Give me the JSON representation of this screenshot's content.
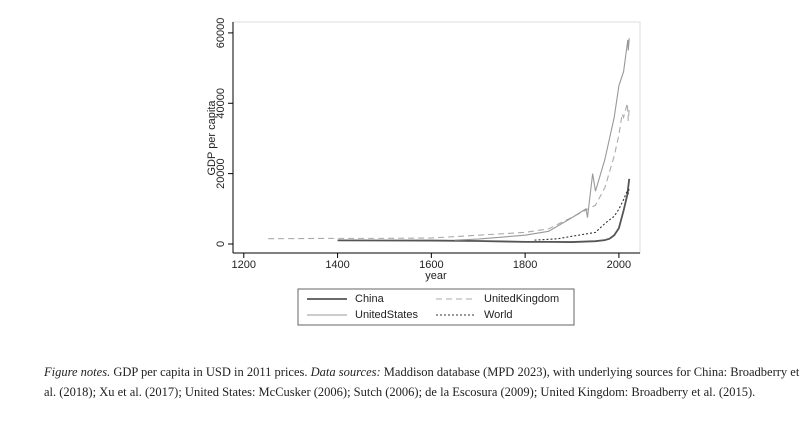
{
  "chart_data": {
    "type": "line",
    "x_label": "year",
    "y_label": "GDP per capita",
    "xlim": [
      1177,
      2045
    ],
    "ylim": [
      -2560,
      63100
    ],
    "xticks": [
      1200,
      1400,
      1600,
      1800,
      2000
    ],
    "yticks": [
      0,
      20000,
      40000,
      60000
    ],
    "series": [
      {
        "name": "China",
        "color": "#555555",
        "dash": "solid",
        "x": [
          1400,
          1500,
          1600,
          1700,
          1750,
          1800,
          1850,
          1900,
          1950,
          1970,
          1980,
          1990,
          2000,
          2010,
          2018,
          2022
        ],
        "values": [
          1032,
          990,
          977,
          841,
          727,
          600,
          600,
          545,
          799,
          1100,
          1500,
          2500,
          4500,
          9500,
          14000,
          18500
        ]
      },
      {
        "name": "UnitedKingdom",
        "color": "#aaaaaa",
        "dash": "dashed",
        "x": [
          1252,
          1400,
          1500,
          1600,
          1700,
          1800,
          1850,
          1900,
          1950,
          1970,
          1990,
          2000,
          2007,
          2010,
          2018,
          2020,
          2022
        ],
        "values": [
          1500,
          1600,
          1600,
          1700,
          2500,
          3300,
          4300,
          7600,
          11000,
          16000,
          25000,
          31000,
          37000,
          36000,
          40000,
          35000,
          38500
        ]
      },
      {
        "name": "UnitedStates",
        "color": "#999999",
        "dash": "solid",
        "x": [
          1650,
          1700,
          1800,
          1850,
          1900,
          1930,
          1933,
          1944,
          1950,
          1970,
          1990,
          2000,
          2010,
          2019,
          2020,
          2022
        ],
        "values": [
          1100,
          1400,
          2500,
          3600,
          7500,
          10000,
          7500,
          20000,
          15000,
          24000,
          36000,
          45000,
          49000,
          58000,
          55000,
          58500
        ]
      },
      {
        "name": "World",
        "color": "#333333",
        "dash": "dotted",
        "x": [
          1820,
          1870,
          1900,
          1950,
          1970,
          1990,
          2000,
          2010,
          2018,
          2020,
          2022
        ],
        "values": [
          1100,
          1500,
          2200,
          3300,
          5800,
          7900,
          9900,
          12600,
          15200,
          14500,
          16000
        ]
      }
    ]
  },
  "figure_notes": {
    "label": "Figure notes.",
    "text": "GDP per capita in USD in 2011 prices.",
    "sources_label": "Data sources:",
    "sources": "Maddison database (MPD 2023), with underlying sources for China: Broadberry et al. (2018); Xu et al. (2017); United States: McCusker (2006); Sutch (2006); de la Escosura (2009); United Kingdom: Broadberry et al. (2015)."
  }
}
